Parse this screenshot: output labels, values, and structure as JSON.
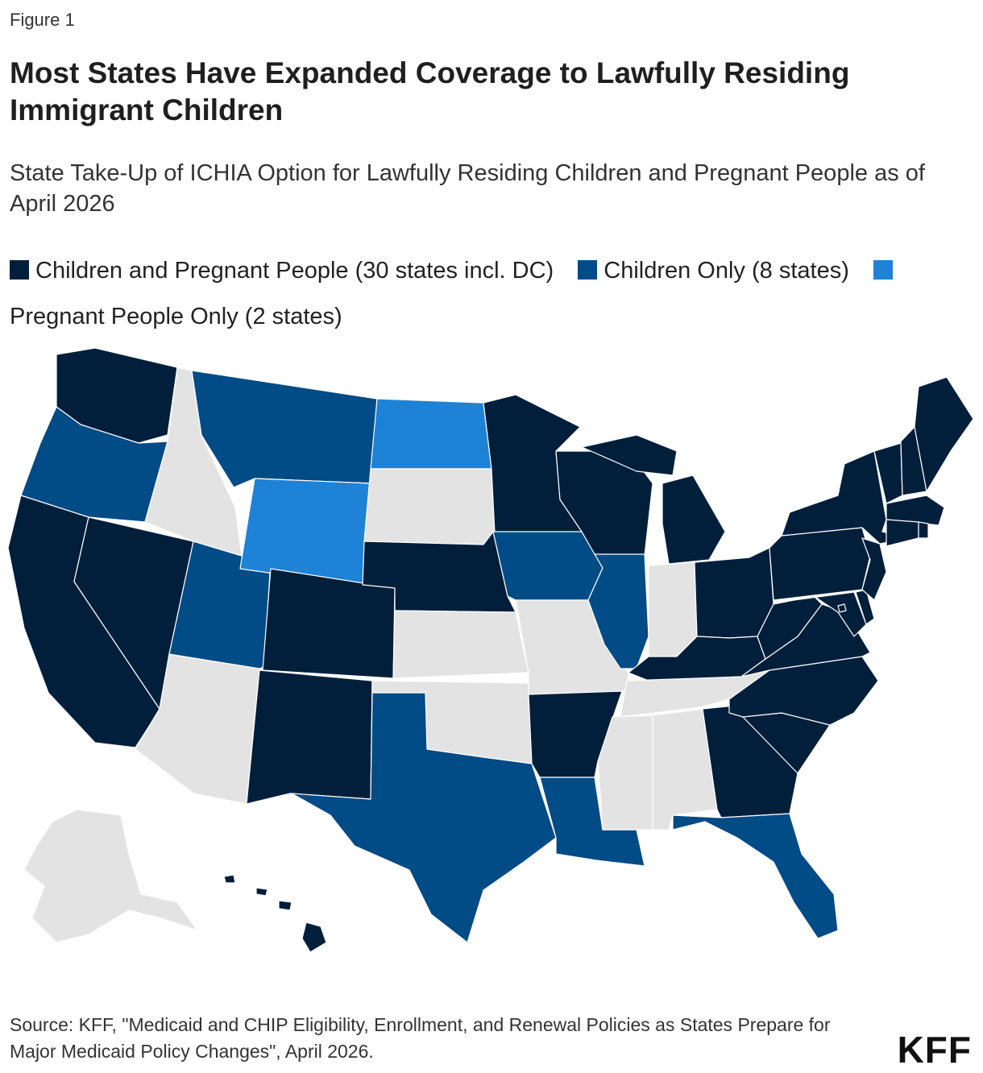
{
  "header": {
    "eyebrow": "Figure 1",
    "title": "Most States Have Expanded Coverage to Lawfully Residing Immigrant Children",
    "subtitle": "State Take-Up of ICHIA Option for Lawfully Residing Children and Pregnant People as of April 2026"
  },
  "legend": [
    {
      "key": "both",
      "label": "Children and Pregnant People (30 states incl. DC)",
      "color": "#011f3b"
    },
    {
      "key": "children",
      "label": "Children Only (8 states)",
      "color": "#014b86"
    },
    {
      "key": "pregnant",
      "label": "Pregnant People Only (2 states)",
      "color": "#1e82d6"
    }
  ],
  "no_data_color": "#e3e3e3",
  "map_data": {
    "type": "choropleth",
    "states": {
      "both": [
        "WA",
        "CA",
        "NV",
        "CO",
        "NM",
        "NE",
        "MN",
        "WI",
        "MI",
        "AR",
        "OH",
        "PA",
        "NY",
        "VT",
        "NH",
        "ME",
        "MA",
        "CT",
        "RI",
        "NJ",
        "DE",
        "MD",
        "DC",
        "VA",
        "WV",
        "KY",
        "NC",
        "SC",
        "GA",
        "HI"
      ],
      "children": [
        "OR",
        "MT",
        "UT",
        "IA",
        "IL",
        "TX",
        "LA",
        "FL"
      ],
      "pregnant": [
        "ND",
        "WY"
      ],
      "none": [
        "ID",
        "AZ",
        "SD",
        "KS",
        "OK",
        "MO",
        "IN",
        "TN",
        "MS",
        "AL",
        "AK"
      ]
    }
  },
  "footer": {
    "source": "Source: KFF, \"Medicaid and CHIP Eligibility, Enrollment, and Renewal Policies as States Prepare for Major Medicaid Policy Changes\", April 2026.",
    "logo": "KFF"
  }
}
